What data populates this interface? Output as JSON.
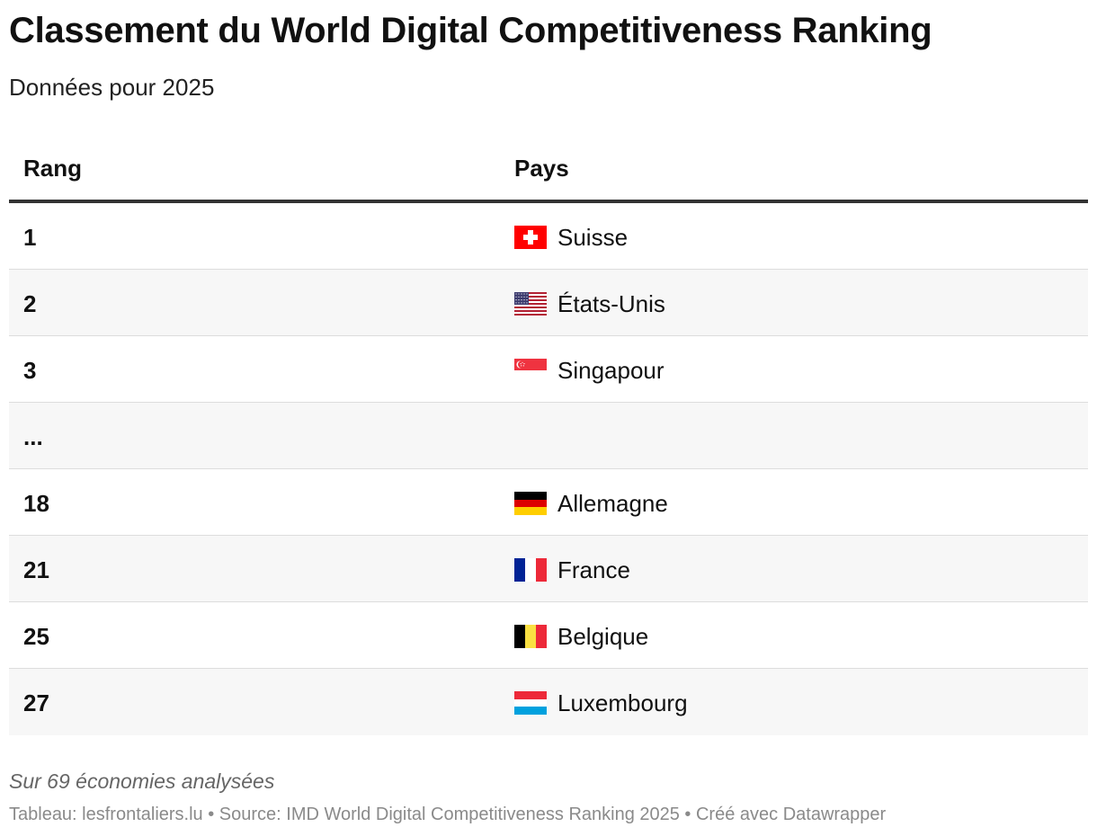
{
  "title": "Classement du World Digital Competitiveness Ranking",
  "subtitle": "Données pour 2025",
  "chart_data": {
    "type": "table",
    "columns": [
      "Rang",
      "Pays"
    ],
    "rows": [
      {
        "rank": "1",
        "country": "Suisse",
        "flag": "switzerland-flag"
      },
      {
        "rank": "2",
        "country": "États-Unis",
        "flag": "usa-flag"
      },
      {
        "rank": "3",
        "country": "Singapour",
        "flag": "singapore-flag"
      },
      {
        "rank": "...",
        "country": "",
        "flag": ""
      },
      {
        "rank": "18",
        "country": "Allemagne",
        "flag": "germany-flag"
      },
      {
        "rank": "21",
        "country": "France",
        "flag": "france-flag"
      },
      {
        "rank": "25",
        "country": "Belgique",
        "flag": "belgium-flag"
      },
      {
        "rank": "27",
        "country": "Luxembourg",
        "flag": "luxembourg-flag"
      }
    ]
  },
  "note": "Sur 69 économies analysées",
  "footer": "Tableau: lesfrontaliers.lu • Source: IMD World Digital Competitiveness Ranking 2025 • Créé avec Datawrapper",
  "colors": {
    "header_rule": "#333333",
    "row_alt": "#f7f7f7",
    "row_divider": "#dddddd",
    "footer_text": "#8a8a8a"
  }
}
